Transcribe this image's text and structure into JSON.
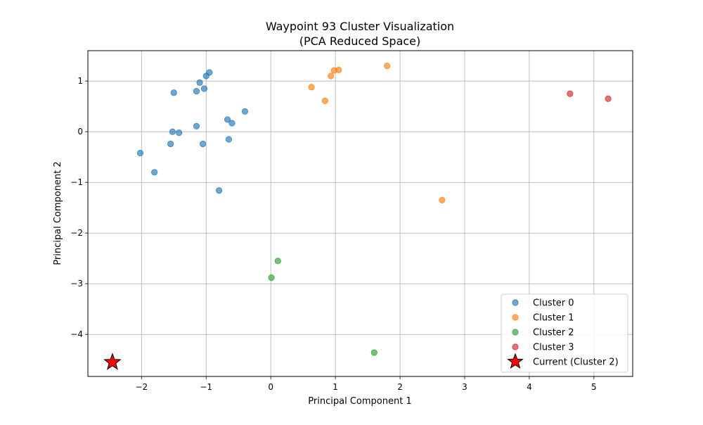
{
  "chart_data": {
    "type": "scatter",
    "title": "Waypoint 93 Cluster Visualization",
    "subtitle": "(PCA Reduced Space)",
    "xlabel": "Principal Component 1",
    "ylabel": "Principal Component 2",
    "xlim": [
      -2.83,
      5.6
    ],
    "ylim": [
      -4.83,
      1.6
    ],
    "xticks": [
      -2,
      -1,
      0,
      1,
      2,
      3,
      4,
      5
    ],
    "yticks": [
      -4,
      -3,
      -2,
      -1,
      0,
      1
    ],
    "grid": true,
    "legend_position": "lower-right",
    "series": [
      {
        "name": "Cluster 0",
        "color": "#1f77b4",
        "points": [
          [
            -1.0,
            1.1
          ],
          [
            -0.95,
            1.17
          ],
          [
            -1.1,
            0.97
          ],
          [
            -1.03,
            0.85
          ],
          [
            -1.15,
            0.8
          ],
          [
            -1.5,
            0.77
          ],
          [
            -0.4,
            0.4
          ],
          [
            -0.67,
            0.24
          ],
          [
            -0.6,
            0.17
          ],
          [
            -1.15,
            0.11
          ],
          [
            -1.52,
            0.0
          ],
          [
            -1.42,
            -0.02
          ],
          [
            -0.65,
            -0.15
          ],
          [
            -1.55,
            -0.24
          ],
          [
            -1.05,
            -0.24
          ],
          [
            -2.02,
            -0.42
          ],
          [
            -1.8,
            -0.8
          ],
          [
            -0.8,
            -1.16
          ]
        ]
      },
      {
        "name": "Cluster 1",
        "color": "#ff7f0e",
        "points": [
          [
            0.98,
            1.21
          ],
          [
            1.05,
            1.22
          ],
          [
            0.93,
            1.1
          ],
          [
            1.8,
            1.3
          ],
          [
            0.63,
            0.88
          ],
          [
            0.84,
            0.61
          ],
          [
            2.65,
            -1.35
          ]
        ]
      },
      {
        "name": "Cluster 2",
        "color": "#2ca02c",
        "points": [
          [
            0.11,
            -2.55
          ],
          [
            0.01,
            -2.88
          ],
          [
            1.6,
            -4.36
          ]
        ]
      },
      {
        "name": "Cluster 3",
        "color": "#d62728",
        "points": [
          [
            4.63,
            0.75
          ],
          [
            5.22,
            0.65
          ]
        ]
      }
    ],
    "current": {
      "name": "Current (Cluster 2)",
      "color": "#ff0000",
      "point": [
        -2.45,
        -4.55
      ]
    }
  }
}
